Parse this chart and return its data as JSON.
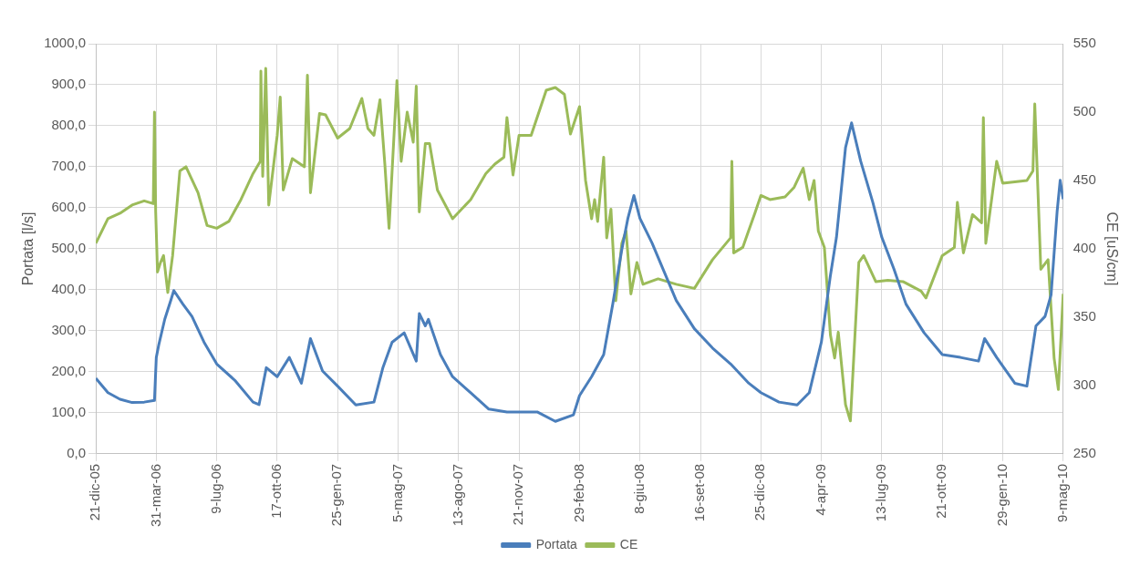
{
  "chart_data": {
    "type": "line",
    "ylabel": "Portata [l/s]",
    "y2label": "CE [uS/cm]",
    "legend": "bottom",
    "grid": true,
    "marker": "none",
    "line_style": "solid",
    "xlim": [
      "2005-12-21",
      "2010-05-09"
    ],
    "xticks": [
      {
        "value": "2005-12-21",
        "label": "21-dic-05"
      },
      {
        "value": "2006-03-31",
        "label": "31-mar-06"
      },
      {
        "value": "2006-07-09",
        "label": "9-lug-06"
      },
      {
        "value": "2006-10-17",
        "label": "17-ott-06"
      },
      {
        "value": "2007-01-25",
        "label": "25-gen-07"
      },
      {
        "value": "2007-05-05",
        "label": "5-mag-07"
      },
      {
        "value": "2007-08-13",
        "label": "13-ago-07"
      },
      {
        "value": "2007-11-21",
        "label": "21-nov-07"
      },
      {
        "value": "2008-02-29",
        "label": "29-feb-08"
      },
      {
        "value": "2008-06-08",
        "label": "8-giu-08"
      },
      {
        "value": "2008-09-16",
        "label": "16-set-08"
      },
      {
        "value": "2008-12-25",
        "label": "25-dic-08"
      },
      {
        "value": "2009-04-04",
        "label": "4-apr-09"
      },
      {
        "value": "2009-07-13",
        "label": "13-lug-09"
      },
      {
        "value": "2009-10-21",
        "label": "21-ott-09"
      },
      {
        "value": "2010-01-29",
        "label": "29-gen-10"
      },
      {
        "value": "2010-05-09",
        "label": "9-mag-10"
      }
    ],
    "ylim": [
      0,
      1000
    ],
    "yticks": [
      {
        "value": 0,
        "label": "0,0"
      },
      {
        "value": 100,
        "label": "100,0"
      },
      {
        "value": 200,
        "label": "200,0"
      },
      {
        "value": 300,
        "label": "300,0"
      },
      {
        "value": 400,
        "label": "400,0"
      },
      {
        "value": 500,
        "label": "500,0"
      },
      {
        "value": 600,
        "label": "600,0"
      },
      {
        "value": 700,
        "label": "700,0"
      },
      {
        "value": 800,
        "label": "800,0"
      },
      {
        "value": 900,
        "label": "900,0"
      },
      {
        "value": 1000,
        "label": "1000,0"
      }
    ],
    "y2lim": [
      250,
      550
    ],
    "y2ticks": [
      250,
      300,
      350,
      400,
      450,
      500,
      550
    ],
    "series": [
      {
        "name": "Portata",
        "color": "#4a7ebb",
        "x": [
          "2005-12-21",
          "2006-01-10",
          "2006-01-30",
          "2006-02-19",
          "2006-03-11",
          "2006-03-28",
          "2006-03-31",
          "2006-04-04",
          "2006-04-14",
          "2006-04-24",
          "2006-04-29",
          "2006-05-14",
          "2006-05-29",
          "2006-06-18",
          "2006-07-09",
          "2006-08-08",
          "2006-09-07",
          "2006-09-17",
          "2006-09-29",
          "2006-10-17",
          "2006-11-06",
          "2006-11-26",
          "2006-12-11",
          "2006-12-31",
          "2007-01-25",
          "2007-02-24",
          "2007-03-26",
          "2007-04-10",
          "2007-04-25",
          "2007-05-15",
          "2007-06-04",
          "2007-06-09",
          "2007-06-19",
          "2007-06-24",
          "2007-07-14",
          "2007-08-03",
          "2007-09-02",
          "2007-10-02",
          "2007-11-01",
          "2007-11-21",
          "2007-12-21",
          "2008-01-20",
          "2008-02-19",
          "2008-02-29",
          "2008-03-20",
          "2008-04-09",
          "2008-04-24",
          "2008-05-09",
          "2008-05-19",
          "2008-05-29",
          "2008-06-08",
          "2008-06-28",
          "2008-07-18",
          "2008-08-07",
          "2008-09-06",
          "2008-10-06",
          "2008-11-05",
          "2008-12-05",
          "2008-12-25",
          "2009-01-24",
          "2009-02-23",
          "2009-03-15",
          "2009-04-04",
          "2009-04-19",
          "2009-04-29",
          "2009-05-14",
          "2009-05-24",
          "2009-06-08",
          "2009-06-28",
          "2009-07-13",
          "2009-08-02",
          "2009-08-22",
          "2009-09-21",
          "2009-10-21",
          "2009-11-20",
          "2009-12-20",
          "2009-12-30",
          "2010-01-19",
          "2010-02-18",
          "2010-03-10",
          "2010-03-25",
          "2010-04-09",
          "2010-04-19",
          "2010-04-29",
          "2010-05-04",
          "2010-05-09"
        ],
        "values": [
          184,
          149,
          133,
          125,
          126,
          130,
          235,
          265,
          328,
          374,
          398,
          365,
          335,
          272,
          219,
          179,
          126,
          120,
          210,
          188,
          235,
          172,
          281,
          202,
          165,
          119,
          126,
          211,
          272,
          295,
          226,
          342,
          312,
          328,
          242,
          188,
          149,
          109,
          102,
          102,
          102,
          79,
          95,
          142,
          188,
          242,
          365,
          498,
          574,
          630,
          574,
          514,
          444,
          374,
          305,
          258,
          219,
          172,
          149,
          126,
          119,
          149,
          272,
          435,
          528,
          747,
          807,
          714,
          614,
          528,
          451,
          365,
          295,
          242,
          235,
          226,
          281,
          235,
          172,
          165,
          312,
          335,
          388,
          591,
          667,
          621
        ]
      },
      {
        "name": "CE",
        "color": "#9bbb59",
        "axis": "y2",
        "x": [
          "2005-12-21",
          "2006-01-10",
          "2006-01-30",
          "2006-02-19",
          "2006-03-11",
          "2006-03-26",
          "2006-03-28",
          "2006-03-30",
          "2006-04-02",
          "2006-04-07",
          "2006-04-12",
          "2006-04-19",
          "2006-04-27",
          "2006-05-09",
          "2006-05-19",
          "2006-06-08",
          "2006-06-23",
          "2006-07-09",
          "2006-07-29",
          "2006-08-18",
          "2006-09-07",
          "2006-09-19",
          "2006-09-20",
          "2006-09-23",
          "2006-09-28",
          "2006-10-03",
          "2006-10-17",
          "2006-10-22",
          "2006-10-27",
          "2006-11-11",
          "2006-12-01",
          "2006-12-06",
          "2006-12-11",
          "2006-12-26",
          "2007-01-05",
          "2007-01-25",
          "2007-02-14",
          "2007-03-06",
          "2007-03-16",
          "2007-03-26",
          "2007-04-05",
          "2007-04-13",
          "2007-04-20",
          "2007-05-03",
          "2007-05-10",
          "2007-05-20",
          "2007-05-30",
          "2007-06-04",
          "2007-06-09",
          "2007-06-19",
          "2007-06-26",
          "2007-07-09",
          "2007-08-03",
          "2007-09-02",
          "2007-09-27",
          "2007-10-12",
          "2007-10-27",
          "2007-11-01",
          "2007-11-11",
          "2007-11-21",
          "2007-12-11",
          "2008-01-05",
          "2008-01-20",
          "2008-02-04",
          "2008-02-14",
          "2008-02-29",
          "2008-03-10",
          "2008-03-20",
          "2008-03-25",
          "2008-03-30",
          "2008-04-09",
          "2008-04-14",
          "2008-04-21",
          "2008-04-29",
          "2008-05-09",
          "2008-05-16",
          "2008-05-24",
          "2008-06-03",
          "2008-06-13",
          "2008-07-08",
          "2008-08-07",
          "2008-09-06",
          "2008-10-06",
          "2008-11-05",
          "2008-11-07",
          "2008-11-10",
          "2008-11-25",
          "2008-12-15",
          "2008-12-25",
          "2009-01-09",
          "2009-02-03",
          "2009-02-18",
          "2009-03-05",
          "2009-03-15",
          "2009-03-23",
          "2009-03-30",
          "2009-04-09",
          "2009-04-19",
          "2009-04-26",
          "2009-05-02",
          "2009-05-14",
          "2009-05-22",
          "2009-06-05",
          "2009-06-13",
          "2009-07-03",
          "2009-07-23",
          "2009-08-17",
          "2009-09-16",
          "2009-09-24",
          "2009-10-21",
          "2009-11-10",
          "2009-11-15",
          "2009-11-25",
          "2009-12-10",
          "2009-12-25",
          "2009-12-28",
          "2010-01-01",
          "2010-01-19",
          "2010-01-29",
          "2010-03-10",
          "2010-03-20",
          "2010-03-23",
          "2010-04-02",
          "2010-04-14",
          "2010-04-24",
          "2010-05-01",
          "2010-05-09"
        ],
        "values": [
          404,
          422,
          426,
          432,
          435,
          433,
          500,
          427,
          383,
          390,
          395,
          368,
          395,
          457,
          460,
          441,
          417,
          415,
          420,
          436,
          455,
          464,
          530,
          453,
          532,
          432,
          483,
          511,
          443,
          466,
          460,
          527,
          441,
          499,
          498,
          481,
          488,
          510,
          488,
          483,
          509,
          462,
          415,
          523,
          464,
          500,
          478,
          519,
          427,
          477,
          477,
          443,
          422,
          436,
          455,
          462,
          467,
          496,
          454,
          483,
          483,
          516,
          518,
          513,
          484,
          504,
          450,
          422,
          436,
          420,
          467,
          408,
          429,
          362,
          404,
          413,
          367,
          390,
          374,
          378,
          374,
          371,
          392,
          408,
          464,
          397,
          401,
          426,
          439,
          436,
          438,
          445,
          459,
          436,
          450,
          413,
          401,
          337,
          320,
          339,
          286,
          274,
          390,
          395,
          376,
          377,
          376,
          369,
          364,
          395,
          401,
          434,
          397,
          425,
          419,
          496,
          404,
          464,
          448,
          450,
          457,
          506,
          385,
          392,
          320,
          297,
          367
        ]
      }
    ]
  }
}
